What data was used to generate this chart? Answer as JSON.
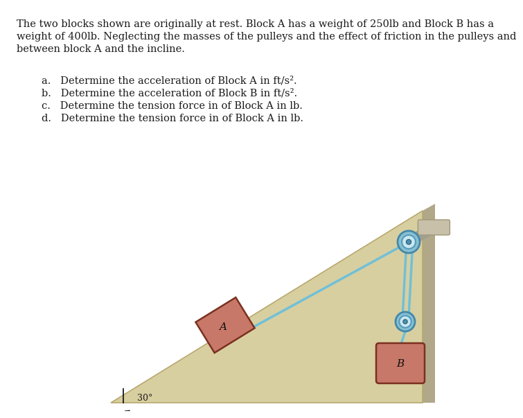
{
  "bg_color": "#ffffff",
  "text_color": "#1a1a1a",
  "title_line1": "The two blocks shown are originally at rest. Block A has a weight of 250lb and Block B has a",
  "title_line2": "weight of 400lb. Neglecting the masses of the pulleys and the effect of friction in the pulleys and",
  "title_line3": "between block A and the incline.",
  "item_a": "a.   Determine the acceleration of Block A in ft/s².",
  "item_b": "b.   Determine the acceleration of Block B in ft/s².",
  "item_c": "c.   Determine the tension force in of Block A in lb.",
  "item_d": "d.   Determine the tension force in of Block A in lb.",
  "incline_face": "#d8cfa0",
  "incline_edge": "#b8a870",
  "incline_right_face": "#b0a888",
  "block_face": "#c87868",
  "block_edge": "#7a3020",
  "rope_color": "#70c0d8",
  "pulley_outer": "#88c0d0",
  "pulley_ring": "#aad8e8",
  "pulley_center": "#5090a8",
  "support_face": "#c8c0a8",
  "support_edge": "#a0987a",
  "axle_color": "#707070"
}
